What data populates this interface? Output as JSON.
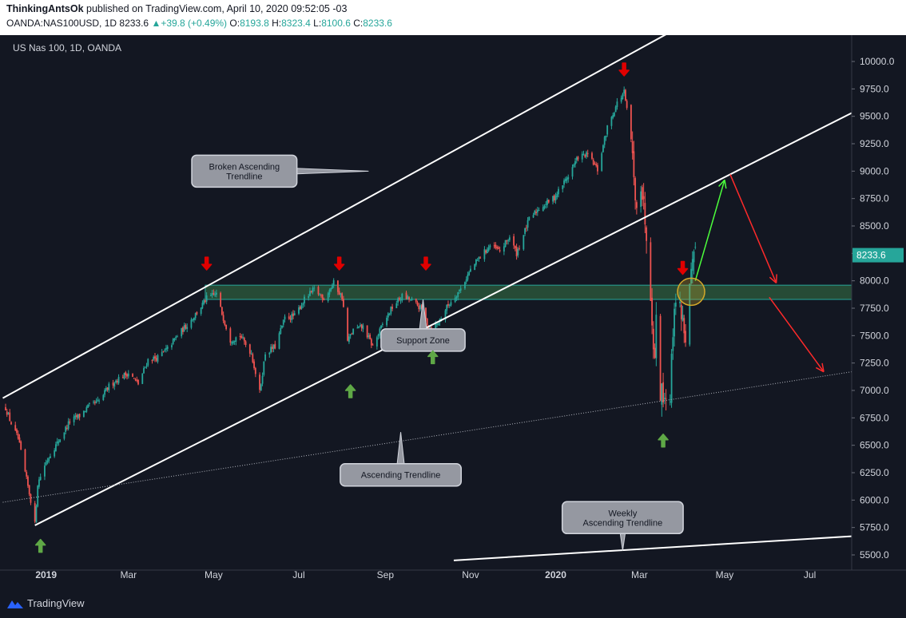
{
  "header": {
    "author": "ThinkingAntsOk",
    "published": "published on TradingView.com, April 10, 2020 09:52:05 -03",
    "symbol": "OANDA:NAS100USD, 1D",
    "last": "8233.6",
    "change": "+39.8 (+0.49%)",
    "o_label": "O:",
    "o_val": "8193.8",
    "h_label": "H:",
    "h_val": "8323.4",
    "l_label": "L:",
    "l_val": "8100.6",
    "c_label": "C:",
    "c_val": "8233.6"
  },
  "footer": {
    "brand": "TradingView"
  },
  "colors": {
    "background": "#131722",
    "bull": "#26a69a",
    "bear": "#ef5350",
    "support_zone": "#2e5e3e",
    "support_border": "#26a69a",
    "price_tag": "#26a69a",
    "arrow_red": "#e00000",
    "arrow_green": "#5fa846"
  },
  "chart_data": {
    "type": "candlestick",
    "title": "US Nas 100, 1D, OANDA",
    "price_label": "8233.6",
    "yticks": [
      10000,
      9750,
      9500,
      9250,
      9000,
      8750,
      8500,
      8250,
      8000,
      7750,
      7500,
      7250,
      7000,
      6750,
      6500,
      6250,
      6000,
      5750,
      5500
    ],
    "ytick_labels": [
      "10000.0",
      "9750.0",
      "9500.0",
      "9250.0",
      "9000.0",
      "8750.0",
      "8500.0",
      "8250.0",
      "8000.0",
      "7750.0",
      "7500.0",
      "7250.0",
      "7000.0",
      "6750.0",
      "6500.0",
      "6250.0",
      "6000.0",
      "5750.0",
      "5500.0"
    ],
    "ylim": [
      5420,
      10150
    ],
    "xlim": [
      "2018-12-03",
      "2020-07-31"
    ],
    "xticks": [
      {
        "label": "2019",
        "date": "2019-01-01",
        "bold": true
      },
      {
        "label": "Mar",
        "date": "2019-03-01"
      },
      {
        "label": "May",
        "date": "2019-05-01"
      },
      {
        "label": "Jul",
        "date": "2019-07-01"
      },
      {
        "label": "Sep",
        "date": "2019-09-01"
      },
      {
        "label": "Nov",
        "date": "2019-11-01"
      },
      {
        "label": "2020",
        "date": "2020-01-01",
        "bold": true
      },
      {
        "label": "Mar",
        "date": "2020-03-01"
      },
      {
        "label": "May",
        "date": "2020-05-01"
      },
      {
        "label": "Jul",
        "date": "2020-07-01"
      }
    ],
    "price_path": [
      [
        "2018-12-03",
        6840
      ],
      [
        "2018-12-07",
        6700
      ],
      [
        "2018-12-12",
        6560
      ],
      [
        "2018-12-17",
        6250
      ],
      [
        "2018-12-21",
        6000
      ],
      [
        "2018-12-24",
        5780
      ],
      [
        "2018-12-26",
        6150
      ],
      [
        "2018-12-31",
        6320
      ],
      [
        "2019-01-04",
        6420
      ],
      [
        "2019-01-10",
        6540
      ],
      [
        "2019-01-18",
        6720
      ],
      [
        "2019-01-25",
        6770
      ],
      [
        "2019-02-01",
        6860
      ],
      [
        "2019-02-08",
        6900
      ],
      [
        "2019-02-15",
        7040
      ],
      [
        "2019-02-22",
        7110
      ],
      [
        "2019-03-01",
        7160
      ],
      [
        "2019-03-08",
        7060
      ],
      [
        "2019-03-15",
        7280
      ],
      [
        "2019-03-22",
        7300
      ],
      [
        "2019-03-29",
        7380
      ],
      [
        "2019-04-05",
        7500
      ],
      [
        "2019-04-12",
        7600
      ],
      [
        "2019-04-19",
        7710
      ],
      [
        "2019-04-26",
        7840
      ],
      [
        "2019-05-03",
        7880
      ],
      [
        "2019-05-07",
        7700
      ],
      [
        "2019-05-13",
        7460
      ],
      [
        "2019-05-20",
        7500
      ],
      [
        "2019-05-28",
        7340
      ],
      [
        "2019-06-03",
        6980
      ],
      [
        "2019-06-07",
        7340
      ],
      [
        "2019-06-14",
        7400
      ],
      [
        "2019-06-21",
        7660
      ],
      [
        "2019-06-28",
        7680
      ],
      [
        "2019-07-05",
        7830
      ],
      [
        "2019-07-12",
        7920
      ],
      [
        "2019-07-19",
        7840
      ],
      [
        "2019-07-26",
        7980
      ],
      [
        "2019-08-01",
        7850
      ],
      [
        "2019-08-05",
        7450
      ],
      [
        "2019-08-09",
        7550
      ],
      [
        "2019-08-16",
        7580
      ],
      [
        "2019-08-23",
        7400
      ],
      [
        "2019-08-30",
        7600
      ],
      [
        "2019-09-06",
        7760
      ],
      [
        "2019-09-13",
        7860
      ],
      [
        "2019-09-20",
        7820
      ],
      [
        "2019-09-27",
        7740
      ],
      [
        "2019-10-02",
        7580
      ],
      [
        "2019-10-08",
        7600
      ],
      [
        "2019-10-15",
        7760
      ],
      [
        "2019-10-25",
        7930
      ],
      [
        "2019-11-01",
        8100
      ],
      [
        "2019-11-08",
        8220
      ],
      [
        "2019-11-15",
        8320
      ],
      [
        "2019-11-22",
        8270
      ],
      [
        "2019-11-29",
        8400
      ],
      [
        "2019-12-04",
        8250
      ],
      [
        "2019-12-13",
        8560
      ],
      [
        "2019-12-20",
        8660
      ],
      [
        "2019-12-31",
        8760
      ],
      [
        "2020-01-10",
        8960
      ],
      [
        "2020-01-17",
        9130
      ],
      [
        "2020-01-24",
        9150
      ],
      [
        "2020-01-31",
        9010
      ],
      [
        "2020-02-07",
        9400
      ],
      [
        "2020-02-14",
        9620
      ],
      [
        "2020-02-19",
        9720
      ],
      [
        "2020-02-24",
        9300
      ],
      [
        "2020-02-27",
        8700
      ],
      [
        "2020-03-02",
        8900
      ],
      [
        "2020-03-06",
        8450
      ],
      [
        "2020-03-09",
        7900
      ],
      [
        "2020-03-12",
        7250
      ],
      [
        "2020-03-13",
        7700
      ],
      [
        "2020-03-16",
        7000
      ],
      [
        "2020-03-18",
        6980
      ],
      [
        "2020-03-20",
        6950
      ],
      [
        "2020-03-23",
        6970
      ],
      [
        "2020-03-26",
        7820
      ],
      [
        "2020-03-31",
        7720
      ],
      [
        "2020-04-03",
        7490
      ],
      [
        "2020-04-07",
        8050
      ],
      [
        "2020-04-10",
        8233.6
      ]
    ],
    "drawings": {
      "channel_upper": [
        [
          "2018-12-01",
          6930
        ],
        [
          "2020-05-01",
          10540
        ]
      ],
      "channel_lower": [
        [
          "2018-12-24",
          5770
        ],
        [
          "2020-07-31",
          9530
        ]
      ],
      "ascending_trendline": [
        [
          "2018-12-01",
          5980
        ],
        [
          "2020-07-31",
          7170
        ]
      ],
      "weekly_trendline": [
        [
          "2019-10-20",
          5450
        ],
        [
          "2020-07-31",
          5670
        ]
      ],
      "support_zone": {
        "from": "2019-04-25",
        "to": "2020-07-31",
        "low": 7830,
        "high": 7960
      },
      "projection_up": [
        [
          "2020-04-10",
          8000
        ],
        [
          "2020-05-01",
          8920
        ]
      ],
      "projection_down_1": [
        [
          "2020-05-05",
          8970
        ],
        [
          "2020-06-07",
          7980
        ]
      ],
      "projection_down_2": [
        [
          "2020-06-02",
          7850
        ],
        [
          "2020-07-11",
          7170
        ]
      ],
      "highlight_circle": {
        "date": "2020-04-07",
        "value": 7900
      }
    },
    "annotations": [
      {
        "text": "Broken Ascending\nTrendline",
        "pointer": [
          "2019-08-20",
          9000
        ],
        "anchor": [
          "2019-05-23",
          9000
        ]
      },
      {
        "text": "Support Zone",
        "pointer": [
          "2019-09-28",
          7830
        ],
        "anchor": [
          "2019-09-28",
          7460
        ]
      },
      {
        "text": "Ascending Trendline",
        "pointer": [
          "2019-09-12",
          6620
        ],
        "anchor": [
          "2019-09-12",
          6230
        ]
      },
      {
        "text": "Weekly\nAscending Trendline",
        "pointer": [
          "2020-02-18",
          5540
        ],
        "anchor": [
          "2020-02-18",
          5840
        ]
      }
    ],
    "red_arrows": [
      {
        "date": "2019-04-26",
        "value": 8150
      },
      {
        "date": "2019-07-30",
        "value": 8150
      },
      {
        "date": "2019-09-30",
        "value": 8150
      },
      {
        "date": "2020-02-19",
        "value": 9920
      },
      {
        "date": "2020-04-01",
        "value": 8110
      }
    ],
    "green_arrows": [
      {
        "date": "2018-12-28",
        "value": 5590
      },
      {
        "date": "2019-08-07",
        "value": 7000
      },
      {
        "date": "2019-10-05",
        "value": 7310
      },
      {
        "date": "2020-03-18",
        "value": 6550
      }
    ]
  }
}
